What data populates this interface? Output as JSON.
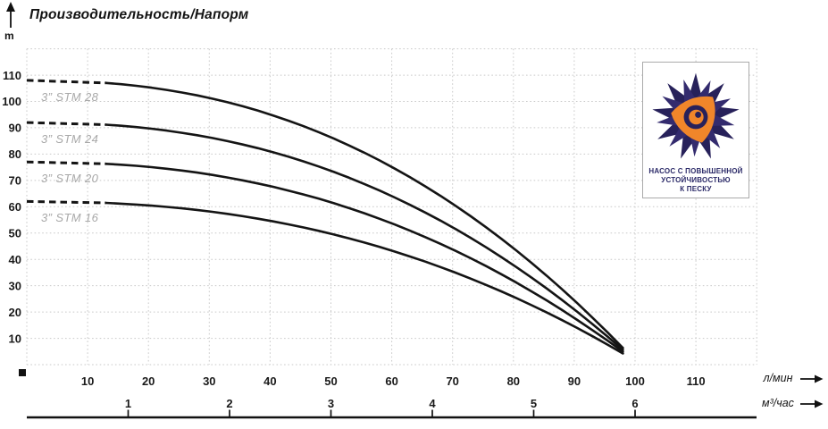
{
  "header": {
    "title": "Производительность/Напорм"
  },
  "units": {
    "head": "m",
    "flow_lmin": "л/мин",
    "flow_m3h": "м³/час"
  },
  "badge": {
    "line1": "НАСОС С ПОВЫШЕННОЙ",
    "line2": "УСТОЙЧИВОСТЬЮ",
    "line3": "К ПЕСКУ",
    "logo_navy": "#27215a",
    "logo_navy_light": "#332b6e",
    "logo_orange": "#f0862a"
  },
  "colors": {
    "curve": "#141414",
    "grid": "#c9c9c9",
    "curve_label": "#a8a8a8",
    "tick_text": "#1a1a1a"
  },
  "chart_data": {
    "type": "line",
    "title": "Производительность/Напорм",
    "xlabel": "л/мин",
    "xlabel_secondary": "м³/час",
    "ylabel": "m",
    "xlim_lmin": [
      0,
      120
    ],
    "ylim_m": [
      0,
      120
    ],
    "grid": true,
    "x_ticks_lmin": [
      10,
      20,
      30,
      40,
      50,
      60,
      70,
      80,
      90,
      100,
      110
    ],
    "x_ticks_m3h": [
      1,
      2,
      3,
      4,
      5,
      6
    ],
    "y_ticks": [
      10,
      20,
      30,
      40,
      50,
      60,
      70,
      80,
      90,
      100,
      110
    ],
    "x_lmin": [
      0,
      20,
      40,
      60,
      80,
      100
    ],
    "series": [
      {
        "name": "3” STM 28",
        "shutoff_head_m": 108,
        "head_m": [
          108,
          105,
          95,
          75,
          43,
          2
        ]
      },
      {
        "name": "3” STM 24",
        "shutoff_head_m": 92,
        "head_m": [
          92,
          90,
          81,
          64,
          37,
          2
        ]
      },
      {
        "name": "3” STM 20",
        "shutoff_head_m": 77,
        "head_m": [
          77,
          75,
          68,
          53,
          31,
          2
        ]
      },
      {
        "name": "3” STM 16",
        "shutoff_head_m": 62,
        "head_m": [
          62,
          60,
          54,
          43,
          25,
          2
        ]
      }
    ],
    "convergence": {
      "flow_lmin": 100,
      "head_m": 1.5
    },
    "dashed_segment_end_lmin": 13,
    "legend_position": "on-curve-left"
  }
}
